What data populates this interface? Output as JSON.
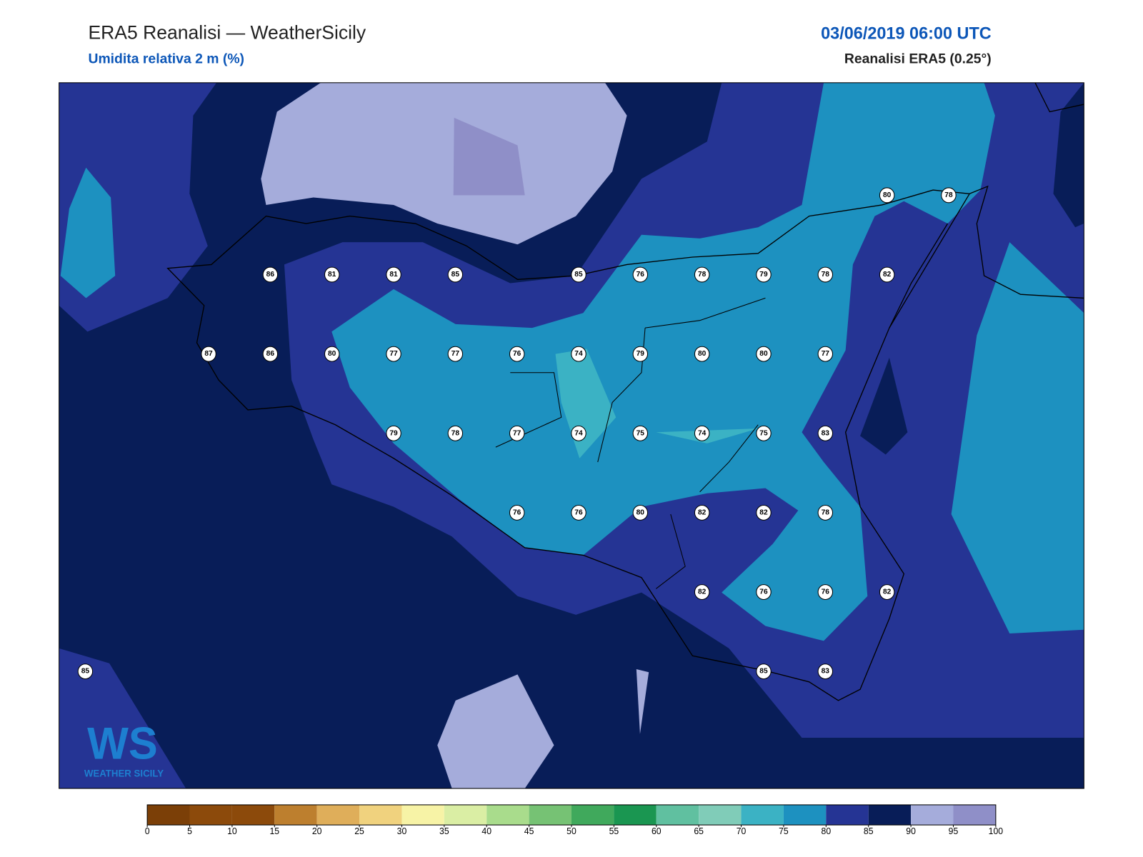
{
  "header": {
    "title": "ERA5 Reanalisi — WeatherSicily",
    "subtitle": "Umidita relativa 2 m (%)",
    "date": "03/06/2019 06:00 UTC",
    "model": "Reanalisi ERA5 (0.25°)"
  },
  "stations": {
    "rows": [
      [
        null,
        null,
        null,
        null,
        null,
        null,
        null,
        null,
        null,
        null,
        null,
        null,
        null,
        80,
        78
      ],
      [
        null,
        null,
        null,
        86,
        81,
        81,
        85,
        null,
        85,
        76,
        78,
        79,
        78,
        82,
        null
      ],
      [
        null,
        null,
        87,
        86,
        80,
        77,
        77,
        76,
        74,
        79,
        80,
        80,
        77,
        null,
        null
      ],
      [
        null,
        null,
        null,
        null,
        null,
        79,
        78,
        77,
        74,
        75,
        74,
        75,
        83,
        null,
        null
      ],
      [
        null,
        null,
        null,
        null,
        null,
        null,
        null,
        76,
        76,
        80,
        82,
        82,
        78,
        null,
        null
      ],
      [
        null,
        null,
        null,
        null,
        null,
        null,
        null,
        null,
        null,
        null,
        82,
        76,
        76,
        82,
        null
      ],
      [
        85,
        null,
        null,
        null,
        null,
        null,
        null,
        null,
        null,
        null,
        null,
        85,
        83,
        null,
        null
      ]
    ]
  },
  "logo": {
    "mark": "WS",
    "text": "WEATHER SICILY"
  },
  "colorbar": {
    "ticks": [
      0,
      5,
      10,
      15,
      20,
      25,
      30,
      35,
      40,
      45,
      50,
      55,
      60,
      65,
      70,
      75,
      80,
      85,
      90,
      95,
      100
    ],
    "colors": [
      "#7b3f07",
      "#8c4a0b",
      "#8c4a0b",
      "#bd7f2e",
      "#dfae5a",
      "#f0d27e",
      "#f7f3a6",
      "#daeea4",
      "#a9dc8c",
      "#76c274",
      "#40a95c",
      "#1a9651",
      "#60c0a0",
      "#80ccb8",
      "#3bb2c4",
      "#1d91c0",
      "#253494",
      "#081d58",
      "#a5acdb",
      "#8f8fc8"
    ]
  }
}
